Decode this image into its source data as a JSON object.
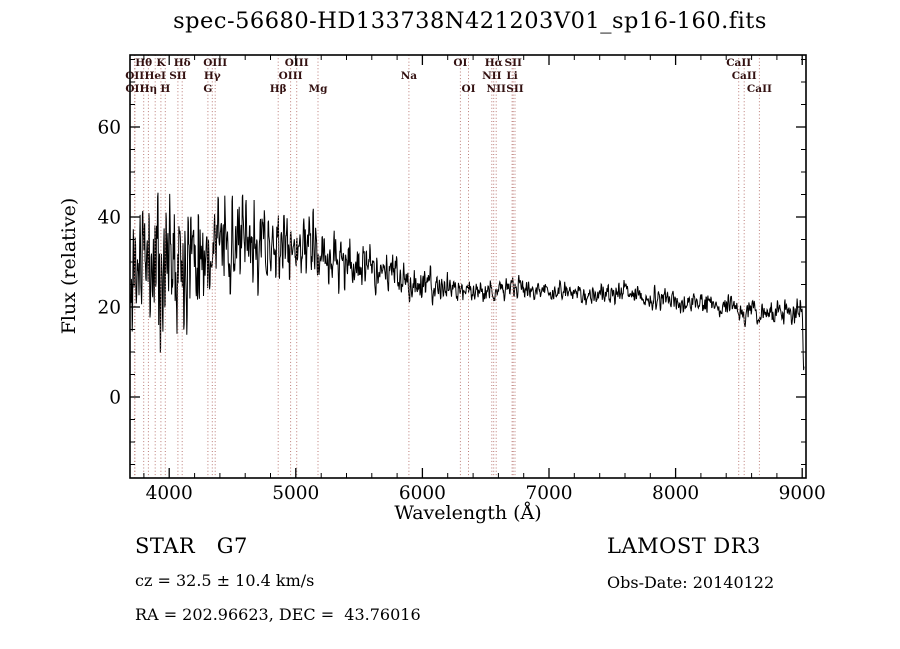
{
  "title": "spec-56680-HD133738N421203V01_sp16-160.fits",
  "footer": {
    "class_left": "STAR   G7",
    "survey_right": "LAMOST DR3",
    "cz": "cz = 32.5 ± 10.4 km/s",
    "obs_date": "Obs-Date: 20140122",
    "ra_dec": "RA = 202.96623, DEC =  43.76016"
  },
  "chart_data": {
    "type": "line",
    "title": "spec-56680-HD133738N421203V01_sp16-160.fits",
    "xlabel": "Wavelength (Å)",
    "ylabel": "Flux (relative)",
    "xlim": [
      3690,
      9030
    ],
    "ylim": [
      -18,
      76
    ],
    "x_major_ticks": [
      4000,
      5000,
      6000,
      7000,
      8000,
      9000
    ],
    "x_minor_step": 200,
    "y_major_ticks": [
      0,
      20,
      40,
      60
    ],
    "y_minor_step": 5,
    "grid": false,
    "legend": "none",
    "line_color": "#000000",
    "marker_line_color": "#bb7b76",
    "marker_label_color": "#331111",
    "line_markers": [
      {
        "label": "Hθ",
        "wl": 3798,
        "row": 1
      },
      {
        "label": "K",
        "wl": 3934,
        "row": 1
      },
      {
        "label": "Hδ",
        "wl": 4102,
        "row": 1
      },
      {
        "label": "OIII",
        "wl": 4363,
        "row": 1
      },
      {
        "label": "OIII",
        "wl": 5007,
        "row": 1
      },
      {
        "label": "OI",
        "wl": 6300,
        "row": 1
      },
      {
        "label": "Hα",
        "wl": 6563,
        "row": 1
      },
      {
        "label": "SII",
        "wl": 6717,
        "row": 1
      },
      {
        "label": "CaII",
        "wl": 8498,
        "row": 1
      },
      {
        "label": "OII",
        "wl": 3727,
        "row": 2
      },
      {
        "label": "HeI",
        "wl": 3889,
        "row": 2
      },
      {
        "label": "SII",
        "wl": 4068,
        "row": 2
      },
      {
        "label": "Hγ",
        "wl": 4340,
        "row": 2
      },
      {
        "label": "OIII",
        "wl": 4959,
        "row": 2
      },
      {
        "label": "Na",
        "wl": 5893,
        "row": 2
      },
      {
        "label": "NII",
        "wl": 6548,
        "row": 2
      },
      {
        "label": "Li",
        "wl": 6708,
        "row": 2
      },
      {
        "label": "CaII",
        "wl": 8542,
        "row": 2
      },
      {
        "label": "OII",
        "wl": 3729,
        "row": 3
      },
      {
        "label": "Hη",
        "wl": 3835,
        "row": 3
      },
      {
        "label": "H",
        "wl": 3969,
        "row": 3
      },
      {
        "label": "G",
        "wl": 4305,
        "row": 3
      },
      {
        "label": "Hβ",
        "wl": 4861,
        "row": 3
      },
      {
        "label": "Mg",
        "wl": 5175,
        "row": 3
      },
      {
        "label": "OI",
        "wl": 6364,
        "row": 3
      },
      {
        "label": "NII",
        "wl": 6583,
        "row": 3
      },
      {
        "label": "SII",
        "wl": 6731,
        "row": 3
      },
      {
        "label": "CaII",
        "wl": 8662,
        "row": 3
      }
    ],
    "spectrum": {
      "seed": 11,
      "step": 3,
      "trend": [
        [
          3692,
          14
        ],
        [
          3705,
          26
        ],
        [
          3720,
          30
        ],
        [
          3740,
          29
        ],
        [
          3760,
          31
        ],
        [
          3780,
          30
        ],
        [
          3800,
          31
        ],
        [
          3830,
          31
        ],
        [
          3860,
          32
        ],
        [
          3890,
          31
        ],
        [
          3920,
          32
        ],
        [
          3950,
          32
        ],
        [
          3980,
          33
        ],
        [
          4010,
          34
        ],
        [
          4040,
          35
        ],
        [
          4080,
          34
        ],
        [
          4120,
          33
        ],
        [
          4160,
          33.5
        ],
        [
          4200,
          34
        ],
        [
          4250,
          33.5
        ],
        [
          4300,
          34
        ],
        [
          4350,
          34.5
        ],
        [
          4400,
          35
        ],
        [
          4450,
          34.5
        ],
        [
          4500,
          34
        ],
        [
          4550,
          34
        ],
        [
          4600,
          33.5
        ],
        [
          4650,
          33.5
        ],
        [
          4700,
          34
        ],
        [
          4750,
          34
        ],
        [
          4800,
          33.5
        ],
        [
          4850,
          33.5
        ],
        [
          4900,
          34
        ],
        [
          4950,
          33.5
        ],
        [
          5000,
          33
        ],
        [
          5050,
          33
        ],
        [
          5100,
          33.5
        ],
        [
          5150,
          33
        ],
        [
          5200,
          32
        ],
        [
          5250,
          31
        ],
        [
          5300,
          30.5
        ],
        [
          5350,
          30
        ],
        [
          5400,
          29.5
        ],
        [
          5450,
          29.5
        ],
        [
          5500,
          29
        ],
        [
          5550,
          29
        ],
        [
          5600,
          28.5
        ],
        [
          5650,
          28.5
        ],
        [
          5700,
          28
        ],
        [
          5750,
          27.5
        ],
        [
          5800,
          27
        ],
        [
          5850,
          26.5
        ],
        [
          5900,
          26
        ],
        [
          5950,
          25.3
        ],
        [
          6000,
          24.8
        ],
        [
          6100,
          24.3
        ],
        [
          6200,
          24
        ],
        [
          6300,
          23.7
        ],
        [
          6400,
          23.8
        ],
        [
          6500,
          24
        ],
        [
          6600,
          24.3
        ],
        [
          6700,
          24.2
        ],
        [
          6800,
          24
        ],
        [
          6900,
          23.7
        ],
        [
          7000,
          23.5
        ],
        [
          7100,
          23.2
        ],
        [
          7200,
          23
        ],
        [
          7300,
          22.8
        ],
        [
          7400,
          22.6
        ],
        [
          7500,
          22.6
        ],
        [
          7580,
          22.7
        ],
        [
          7605,
          25.2
        ],
        [
          7630,
          22.6
        ],
        [
          7700,
          22.3
        ],
        [
          7800,
          21.9
        ],
        [
          7900,
          21.5
        ],
        [
          8000,
          21.3
        ],
        [
          8100,
          21
        ],
        [
          8200,
          20.8
        ],
        [
          8300,
          20.4
        ],
        [
          8400,
          20
        ],
        [
          8500,
          19.6
        ],
        [
          8600,
          19.2
        ],
        [
          8700,
          18.8
        ],
        [
          8800,
          18.5
        ],
        [
          8900,
          18.8
        ],
        [
          8960,
          19.6
        ],
        [
          9000,
          20.2
        ],
        [
          9006,
          14
        ],
        [
          9012,
          4.5
        ]
      ],
      "noise_sigma": [
        [
          3692,
          9
        ],
        [
          3800,
          8.5
        ],
        [
          3950,
          8
        ],
        [
          4100,
          7
        ],
        [
          4300,
          5.5
        ],
        [
          4500,
          4.8
        ],
        [
          4700,
          4.2
        ],
        [
          4900,
          3.8
        ],
        [
          5100,
          3.4
        ],
        [
          5300,
          2.8
        ],
        [
          5500,
          2.4
        ],
        [
          5700,
          2.2
        ],
        [
          5900,
          1.9
        ],
        [
          6100,
          1.6
        ],
        [
          6300,
          1.4
        ],
        [
          6500,
          1.3
        ],
        [
          6800,
          1.1
        ],
        [
          7200,
          1.0
        ],
        [
          7600,
          1.1
        ],
        [
          8000,
          1.1
        ],
        [
          8400,
          1.1
        ],
        [
          8700,
          1.2
        ],
        [
          9012,
          1.3
        ]
      ],
      "absorption_dips": [
        [
          3934,
          9,
          6
        ],
        [
          3969,
          9,
          6
        ],
        [
          4102,
          6,
          6
        ],
        [
          4305,
          6,
          9
        ],
        [
          4340,
          4,
          5
        ],
        [
          4861,
          4.5,
          6
        ],
        [
          5175,
          3.5,
          9
        ],
        [
          5893,
          3,
          6
        ],
        [
          6563,
          3,
          6
        ],
        [
          8498,
          2.5,
          7
        ],
        [
          8542,
          3,
          8
        ],
        [
          8662,
          2.5,
          8
        ]
      ]
    }
  }
}
